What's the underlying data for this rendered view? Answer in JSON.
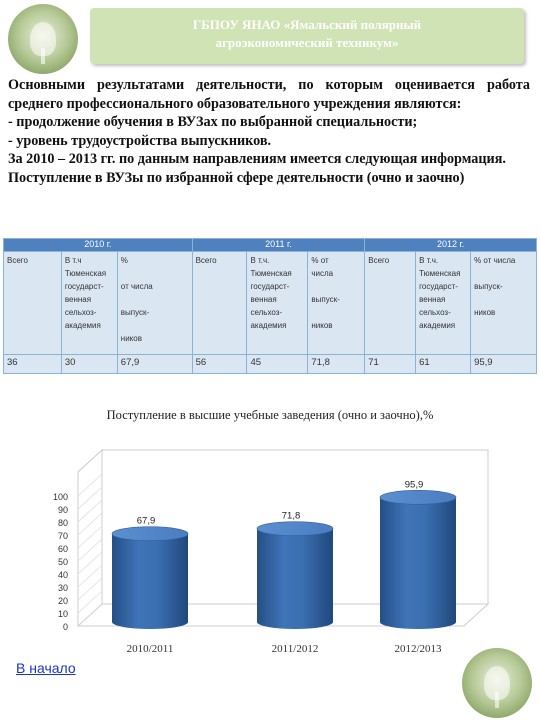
{
  "header": {
    "line1": "ГБПОУ ЯНАО «Ямальский полярный",
    "line2": "агроэкономический техникум»"
  },
  "body_paragraphs": [
    "Основными результатами деятельности, по которым оценивается работа среднего профессионального образовательного учреждения являются:",
    "- продолжение обучения в ВУЗах по выбранной специальности;",
    "- уровень трудоустройства выпускников.",
    "За 2010 – 2013 гг. по данным направлениям имеется следующая информация.",
    "Поступление в ВУЗы по избранной сфере деятельности (очно и заочно)"
  ],
  "table": {
    "years": [
      "2010 г.",
      "2011 г.",
      "2012 г."
    ],
    "header_cells": [
      [
        "Всего"
      ],
      [
        "В т.ч",
        "Тюменская",
        "государст-",
        "венная",
        "сельхоз-",
        "академия"
      ],
      [
        "%",
        "",
        "от числа",
        "",
        "выпуск-",
        "",
        "ников"
      ],
      [
        "Всего"
      ],
      [
        "В т.ч.",
        "Тюменская",
        "государст-",
        "венная",
        "сельхоз-",
        "академия"
      ],
      [
        "% от",
        "числа",
        "",
        "выпуск-",
        "",
        "ников"
      ],
      [
        "Всего"
      ],
      [
        "В т.ч.",
        "Тюменская",
        "государст-",
        "венная",
        "сельхоз-",
        "академия"
      ],
      [
        "% от числа",
        "",
        "выпуск-",
        "",
        "ников"
      ]
    ],
    "values": [
      "36",
      "30",
      "67,9",
      "56",
      "45",
      "71,8",
      "71",
      "61",
      "95,9"
    ]
  },
  "chart_title": "Поступление в высшие учебные заведения (очно и заочно),%",
  "chart_data": {
    "type": "bar",
    "categories": [
      "2010/2011",
      "2011/2012",
      "2012/2013"
    ],
    "values": [
      67.9,
      71.8,
      95.9
    ],
    "value_labels": [
      "67,9",
      "71,8",
      "95,9"
    ],
    "title": "Поступление в высшие учебные заведения (очно и заочно),%",
    "xlabel": "",
    "ylabel": "",
    "ylim": [
      0,
      100
    ],
    "yticks": [
      0,
      10,
      20,
      30,
      40,
      50,
      60,
      70,
      80,
      90,
      100
    ],
    "style": "3d-cylinder",
    "bar_color": "#3a6fb0",
    "grid": false
  },
  "nav": {
    "back_link": "В начало"
  },
  "colors": {
    "header_bg": "#cfe3b4",
    "table_header": "#4e81bd",
    "table_cell": "#dbe6f3",
    "logo_green": "#8ea86b"
  },
  "icons": [
    "college-logo-icon"
  ]
}
